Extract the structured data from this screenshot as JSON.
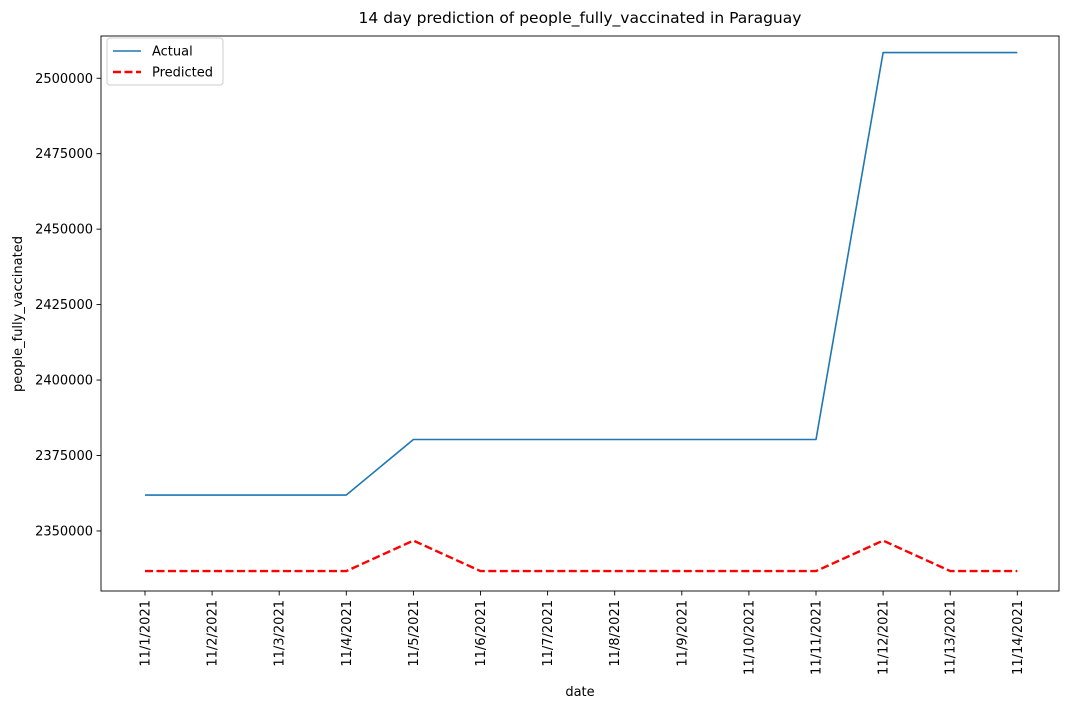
{
  "chart_data": {
    "type": "line",
    "title": "14 day prediction of people_fully_vaccinated in Paraguay",
    "xlabel": "date",
    "ylabel": "people_fully_vaccinated",
    "categories": [
      "11/1/2021",
      "11/2/2021",
      "11/3/2021",
      "11/4/2021",
      "11/5/2021",
      "11/6/2021",
      "11/7/2021",
      "11/8/2021",
      "11/9/2021",
      "11/10/2021",
      "11/11/2021",
      "11/12/2021",
      "11/13/2021",
      "11/14/2021"
    ],
    "yticks": [
      2350000,
      2375000,
      2400000,
      2425000,
      2450000,
      2475000,
      2500000
    ],
    "ytick_labels": [
      "2350000",
      "2375000",
      "2400000",
      "2425000",
      "2450000",
      "2475000",
      "2500000"
    ],
    "ylim": [
      2330100,
      2514000
    ],
    "legend_position": "upper-left",
    "grid": false,
    "series": [
      {
        "name": "Actual",
        "color": "#1f77b4",
        "style": "solid",
        "values": [
          2361900,
          2361900,
          2361900,
          2361900,
          2380300,
          2380300,
          2380300,
          2380300,
          2380300,
          2380300,
          2380300,
          2508500,
          2508500,
          2508500
        ]
      },
      {
        "name": "Predicted",
        "color": "#ff0000",
        "style": "dashed",
        "values": [
          2336700,
          2336700,
          2336700,
          2336700,
          2346800,
          2336700,
          2336700,
          2336700,
          2336700,
          2336700,
          2336700,
          2346800,
          2336700,
          2336700
        ]
      }
    ]
  }
}
